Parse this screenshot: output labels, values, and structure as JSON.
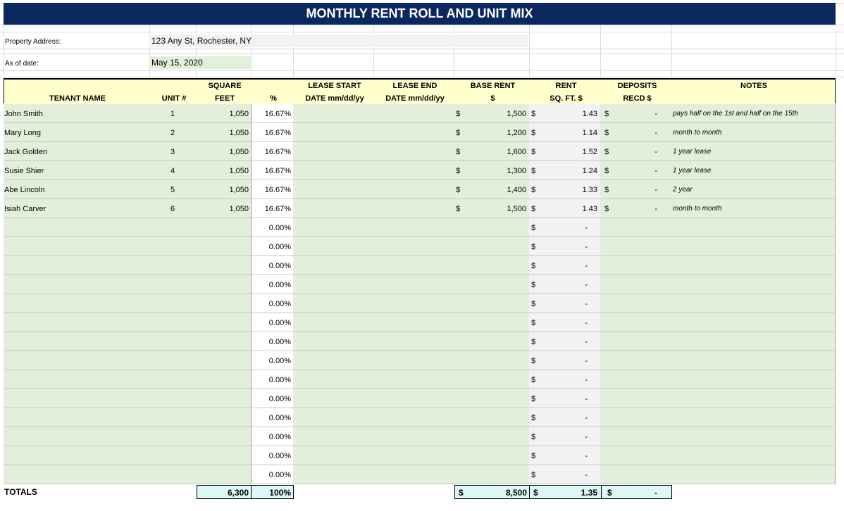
{
  "title": "MONTHLY RENT ROLL AND UNIT MIX",
  "property_address_label": "Property Address:",
  "property_address": "123 Any St, Rochester, NY",
  "as_of_label": "As of date:",
  "as_of_date": "May 15, 2020",
  "headers": {
    "tenant": "TENANT NAME",
    "unit": "UNIT #",
    "sqft_1": "SQUARE",
    "sqft_2": "FEET",
    "pct": "%",
    "lease_start_1": "LEASE START",
    "lease_start_2": "DATE mm/dd/yy",
    "lease_end_1": "LEASE END",
    "lease_end_2": "DATE mm/dd/yy",
    "base_rent_1": "BASE RENT",
    "base_rent_2": "$",
    "rent_sqft_1": "RENT",
    "rent_sqft_2": "SQ. FT. $",
    "deposits_1": "DEPOSITS",
    "deposits_2": "RECD $",
    "notes": "NOTES"
  },
  "tenants": [
    {
      "name": "John Smith",
      "unit": "1",
      "sqft": "1,050",
      "pct": "16.67%",
      "base_rent": "1,500",
      "rent_sqft": "1.43",
      "deposit": "-",
      "note": "pays half on the 1st and half on the 15th"
    },
    {
      "name": "Mary Long",
      "unit": "2",
      "sqft": "1,050",
      "pct": "16.67%",
      "base_rent": "1,200",
      "rent_sqft": "1.14",
      "deposit": "-",
      "note": "month to month"
    },
    {
      "name": "Jack Golden",
      "unit": "3",
      "sqft": "1,050",
      "pct": "16.67%",
      "base_rent": "1,600",
      "rent_sqft": "1.52",
      "deposit": "-",
      "note": "1 year lease"
    },
    {
      "name": "Susie Shier",
      "unit": "4",
      "sqft": "1,050",
      "pct": "16.67%",
      "base_rent": "1,300",
      "rent_sqft": "1.24",
      "deposit": "-",
      "note": "1 year lease"
    },
    {
      "name": "Abe Lincoln",
      "unit": "5",
      "sqft": "1,050",
      "pct": "16.67%",
      "base_rent": "1,400",
      "rent_sqft": "1.33",
      "deposit": "-",
      "note": "2 year"
    },
    {
      "name": "Isiah Carver",
      "unit": "6",
      "sqft": "1,050",
      "pct": "16.67%",
      "base_rent": "1,500",
      "rent_sqft": "1.43",
      "deposit": "-",
      "note": "month to month"
    }
  ],
  "empty_row_pct": "0.00%",
  "empty_row_rent_sqft": "-",
  "empty_row_count": 14,
  "currency_symbol": "$",
  "totals": {
    "label": "TOTALS",
    "sqft": "6,300",
    "pct": "100%",
    "base_rent": "8,500",
    "rent_sqft": "1.35",
    "deposit": "-"
  },
  "colors": {
    "title_bg": "#0b2760",
    "header_bg": "#ffffcc",
    "input_green": "#e2efda",
    "totals_cyan": "#ddf7f7",
    "calc_gray": "#f2f2f2"
  }
}
